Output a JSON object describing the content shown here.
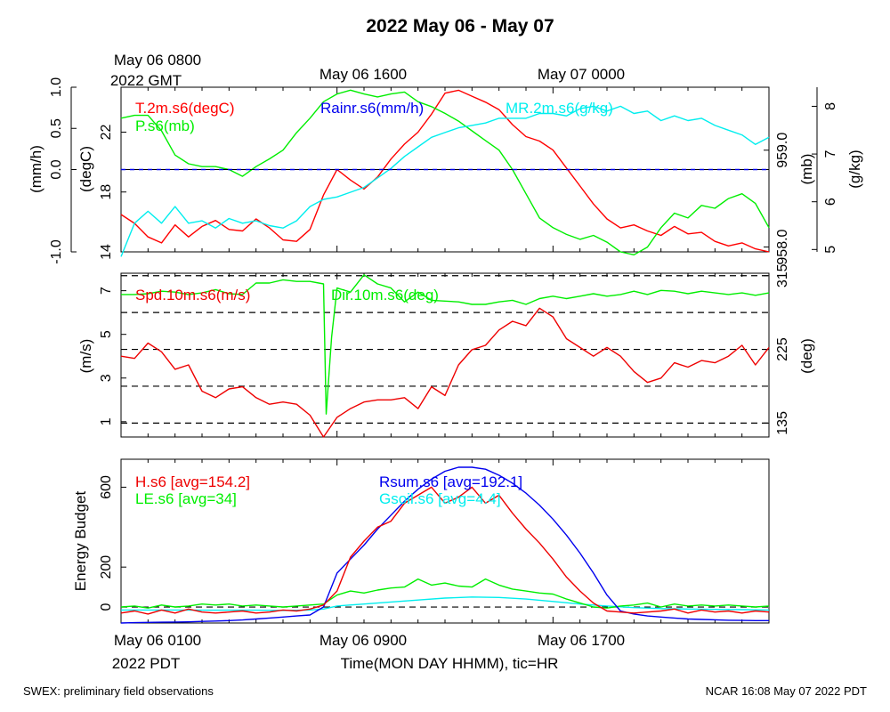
{
  "page": {
    "title": "2022 May 06 - May 07",
    "footer_left": "SWEX: preliminary field observations",
    "footer_right": "NCAR 16:08 May 07 2022 PDT",
    "top_time_labels": [
      {
        "text": "May 06 0800",
        "hour": 0
      },
      {
        "text": "May 06 1600",
        "hour": 8
      },
      {
        "text": "May 07 0000",
        "hour": 16
      }
    ],
    "top_time_zone": "2022 GMT",
    "bottom_time_labels": [
      {
        "text": "May 06 0100",
        "hour": 0
      },
      {
        "text": "May 06 0900",
        "hour": 8
      },
      {
        "text": "May 06 1700",
        "hour": 16
      }
    ],
    "bottom_time_zone": "2022 PDT",
    "xlabel": "Time(MON DAY HHMM), tic=HR"
  },
  "chart_data": [
    {
      "type": "line",
      "panel": "state",
      "x_range_hours": [
        0,
        24
      ],
      "series": [
        {
          "name": "T.2m.s6(degC)",
          "color": "#ff0000",
          "axis": "degC",
          "x": [
            0,
            0.5,
            1,
            1.5,
            2,
            2.5,
            3,
            3.5,
            4,
            4.5,
            5,
            5.5,
            6,
            6.5,
            7,
            7.5,
            8,
            8.5,
            9,
            9.5,
            10,
            10.5,
            11,
            11.5,
            12,
            12.5,
            13,
            13.5,
            14,
            14.5,
            15,
            15.5,
            16,
            16.5,
            17,
            17.5,
            18,
            18.5,
            19,
            19.5,
            20,
            20.5,
            21,
            21.5,
            22,
            22.5,
            23,
            23.5,
            24
          ],
          "values": [
            16.5,
            15.9,
            15.0,
            14.6,
            15.8,
            15.0,
            15.7,
            16.1,
            15.5,
            15.4,
            16.2,
            15.6,
            14.8,
            14.7,
            15.5,
            17.8,
            19.5,
            18.8,
            18.2,
            19.0,
            20.2,
            21.2,
            22.0,
            23.2,
            24.6,
            24.8,
            24.4,
            24.0,
            23.5,
            22.5,
            21.7,
            21.4,
            20.8,
            19.6,
            18.4,
            17.2,
            16.2,
            15.6,
            15.8,
            15.4,
            15.1,
            15.7,
            15.2,
            15.3,
            14.7,
            14.4,
            14.6,
            14.2,
            14.0
          ]
        },
        {
          "name": "P.s6(mb)",
          "color": "#00ee00",
          "axis": "mb",
          "x": [
            0,
            0.5,
            1,
            1.5,
            2,
            2.5,
            3,
            3.5,
            4,
            4.5,
            5,
            5.5,
            6,
            6.5,
            7,
            7.5,
            8,
            8.5,
            9,
            9.5,
            10,
            10.5,
            11,
            11.5,
            12,
            12.5,
            13,
            13.5,
            14,
            14.5,
            15,
            15.5,
            16,
            16.5,
            17,
            17.5,
            18,
            18.5,
            19,
            19.5,
            20,
            20.5,
            21,
            21.5,
            22,
            22.5,
            23,
            23.5,
            24
          ],
          "values": [
            959.33,
            959.36,
            959.36,
            959.2,
            958.95,
            958.86,
            958.83,
            958.83,
            958.8,
            958.73,
            958.83,
            958.91,
            959.0,
            959.18,
            959.33,
            959.5,
            959.58,
            959.62,
            959.58,
            959.55,
            959.58,
            959.6,
            959.5,
            959.45,
            959.38,
            959.3,
            959.2,
            959.1,
            959.0,
            958.8,
            958.55,
            958.3,
            958.2,
            958.13,
            958.08,
            958.12,
            958.05,
            957.95,
            957.92,
            958.0,
            958.2,
            958.35,
            958.3,
            958.43,
            958.4,
            958.5,
            958.55,
            958.45,
            958.2
          ]
        },
        {
          "name": "MR.2m.s6(g/kg)",
          "color": "#00eeee",
          "axis": "g/kg",
          "x": [
            0,
            0.5,
            1,
            1.5,
            2,
            2.5,
            3,
            3.5,
            4,
            4.5,
            5,
            5.5,
            6,
            6.5,
            7,
            7.5,
            8,
            8.5,
            9,
            9.5,
            10,
            10.5,
            11,
            11.5,
            12,
            12.5,
            13,
            13.5,
            14,
            14.5,
            15,
            15.5,
            16,
            16.5,
            17,
            17.5,
            18,
            18.5,
            19,
            19.5,
            20,
            20.5,
            21,
            21.5,
            22,
            22.5,
            23,
            23.5,
            24
          ],
          "values": [
            4.85,
            5.55,
            5.8,
            5.55,
            5.9,
            5.55,
            5.6,
            5.45,
            5.65,
            5.55,
            5.6,
            5.5,
            5.45,
            5.6,
            5.9,
            6.05,
            6.1,
            6.2,
            6.3,
            6.5,
            6.7,
            6.95,
            7.15,
            7.35,
            7.45,
            7.55,
            7.6,
            7.65,
            7.75,
            7.75,
            7.75,
            7.85,
            7.85,
            7.8,
            7.95,
            8.0,
            7.9,
            8.0,
            7.85,
            7.9,
            7.7,
            7.8,
            7.7,
            7.75,
            7.6,
            7.5,
            7.4,
            7.2,
            7.35
          ]
        },
        {
          "name": "Rainr.s6(mm/h)",
          "color": "#0000ee",
          "axis": "mm/h",
          "x": [
            0,
            24
          ],
          "values": [
            0,
            0
          ]
        }
      ],
      "axes": {
        "degC": {
          "label": "(degC)",
          "range": [
            14,
            25
          ],
          "ticks": [
            14,
            18,
            22
          ]
        },
        "mm/h": {
          "label": "(mm/h)",
          "range": [
            -1.0,
            1.0
          ],
          "ticks": [
            -1.0,
            0.0,
            0.5,
            1.0
          ],
          "tick_labels": [
            "-1.0",
            "0.0",
            "0.5",
            "1.0"
          ]
        },
        "mb": {
          "label": "(mb)",
          "range": [
            957.95,
            959.65
          ],
          "ticks": [
            958.0,
            959.0
          ],
          "tick_labels": [
            "958.0",
            "959.0"
          ]
        },
        "g/kg": {
          "label": "(g/kg)",
          "range": [
            4.95,
            8.4
          ],
          "ticks": [
            5,
            6,
            7,
            8
          ]
        }
      }
    },
    {
      "type": "line",
      "panel": "wind",
      "x_range_hours": [
        0,
        24
      ],
      "series": [
        {
          "name": "Spd.10m.s6(m/s)",
          "color": "#ee0000",
          "axis": "m/s",
          "x": [
            0,
            0.5,
            1,
            1.5,
            2,
            2.5,
            3,
            3.5,
            4,
            4.5,
            5,
            5.5,
            6,
            6.5,
            7,
            7.5,
            8,
            8.5,
            9,
            9.5,
            10,
            10.5,
            11,
            11.5,
            12,
            12.5,
            13,
            13.5,
            14,
            14.5,
            15,
            15.5,
            16,
            16.5,
            17,
            17.5,
            18,
            18.5,
            19,
            19.5,
            20,
            20.5,
            21,
            21.5,
            22,
            22.5,
            23,
            23.5,
            24
          ],
          "values": [
            4.0,
            3.9,
            4.6,
            4.2,
            3.4,
            3.6,
            2.4,
            2.1,
            2.5,
            2.6,
            2.1,
            1.8,
            1.9,
            1.8,
            1.3,
            0.3,
            1.2,
            1.6,
            1.9,
            2.0,
            2.0,
            2.1,
            1.6,
            2.6,
            2.2,
            3.6,
            4.3,
            4.5,
            5.2,
            5.6,
            5.4,
            6.2,
            5.8,
            4.8,
            4.4,
            4.0,
            4.4,
            4.0,
            3.3,
            2.8,
            3.0,
            3.7,
            3.5,
            3.8,
            3.7,
            4.0,
            4.5,
            3.6,
            4.4
          ]
        },
        {
          "name": "Dir.10m.s6(deg)",
          "color": "#00ee00",
          "axis": "deg",
          "x": [
            0,
            0.5,
            1,
            1.5,
            2,
            2.5,
            3,
            3.5,
            4,
            4.5,
            5,
            5.5,
            6,
            6.5,
            7,
            7.5,
            7.6,
            7.8,
            8,
            8.5,
            9,
            9.5,
            10,
            10.5,
            11,
            11.5,
            12,
            12.5,
            13,
            13.5,
            14,
            14.5,
            15,
            15.5,
            16,
            16.5,
            17,
            17.5,
            18,
            18.5,
            19,
            19.5,
            20,
            20.5,
            21,
            21.5,
            22,
            22.5,
            23,
            23.5,
            24
          ],
          "values": [
            292,
            292,
            293,
            296,
            295,
            292,
            294,
            298,
            293,
            292,
            306,
            306,
            310,
            308,
            308,
            305,
            146,
            240,
            300,
            295,
            316,
            305,
            300,
            283,
            295,
            285,
            284,
            283,
            280,
            280,
            283,
            285,
            280,
            287,
            290,
            287,
            290,
            293,
            290,
            292,
            296,
            292,
            297,
            296,
            293,
            296,
            294,
            292,
            294,
            291,
            294
          ]
        }
      ],
      "axes": {
        "m/s": {
          "label": "(m/s)",
          "range": [
            0.3,
            7.8
          ],
          "ticks": [
            1,
            3,
            5,
            7
          ]
        },
        "deg": {
          "label": "(deg)",
          "range": [
            118,
            318
          ],
          "ticks": [
            135,
            225,
            315
          ]
        }
      },
      "reference_lines_deg": [
        135,
        180,
        225,
        270,
        315
      ]
    },
    {
      "type": "line",
      "panel": "energy",
      "x_range_hours": [
        0,
        24
      ],
      "ylabel": "Energy Budget",
      "y_range": [
        -80,
        740
      ],
      "y_ticks": [
        0,
        200,
        600
      ],
      "series": [
        {
          "name": "H.s6 [avg=154.2]",
          "color": "#ee0000",
          "x": [
            0,
            0.5,
            1,
            1.5,
            2,
            2.5,
            3,
            3.5,
            4,
            4.5,
            5,
            5.5,
            6,
            6.5,
            7,
            7.5,
            8,
            8.5,
            9,
            9.5,
            10,
            10.5,
            11,
            11.5,
            12,
            12.5,
            13,
            13.5,
            14,
            14.5,
            15,
            15.5,
            16,
            16.5,
            17,
            17.5,
            18,
            18.5,
            19,
            19.5,
            20,
            20.5,
            21,
            21.5,
            22,
            22.5,
            23,
            23.5,
            24
          ],
          "values": [
            -30,
            -20,
            -35,
            -15,
            -30,
            -10,
            -25,
            -30,
            -25,
            -20,
            -30,
            -25,
            -15,
            -20,
            -10,
            10,
            80,
            250,
            330,
            400,
            430,
            520,
            560,
            600,
            520,
            550,
            600,
            520,
            560,
            470,
            390,
            320,
            240,
            150,
            80,
            20,
            -20,
            -25,
            -30,
            -25,
            -20,
            -10,
            -30,
            -15,
            -25,
            -20,
            -30,
            -20,
            -25
          ]
        },
        {
          "name": "LE.s6 [avg=34]",
          "color": "#00ee00",
          "x": [
            0,
            0.5,
            1,
            1.5,
            2,
            2.5,
            3,
            3.5,
            4,
            4.5,
            5,
            5.5,
            6,
            6.5,
            7,
            7.5,
            8,
            8.5,
            9,
            9.5,
            10,
            10.5,
            11,
            11.5,
            12,
            12.5,
            13,
            13.5,
            14,
            14.5,
            15,
            15.5,
            16,
            16.5,
            17,
            17.5,
            18,
            18.5,
            19,
            19.5,
            20,
            20.5,
            21,
            21.5,
            22,
            22.5,
            23,
            23.5,
            24
          ],
          "values": [
            0,
            5,
            -5,
            10,
            0,
            5,
            15,
            10,
            15,
            5,
            10,
            5,
            0,
            5,
            10,
            15,
            60,
            80,
            70,
            85,
            95,
            100,
            140,
            110,
            120,
            105,
            100,
            140,
            110,
            90,
            80,
            70,
            65,
            40,
            20,
            0,
            -5,
            5,
            10,
            20,
            0,
            15,
            5,
            10,
            5,
            10,
            5,
            0,
            5
          ]
        },
        {
          "name": "Rsum.s6 [avg=192.1]",
          "color": "#0000ee",
          "x": [
            0,
            0.5,
            1,
            1.5,
            2,
            2.5,
            3,
            3.5,
            4,
            4.5,
            5,
            5.5,
            6,
            6.5,
            7,
            7.5,
            8,
            8.5,
            9,
            9.5,
            10,
            10.5,
            11,
            11.5,
            12,
            12.5,
            13,
            13.5,
            14,
            14.5,
            15,
            15.5,
            16,
            16.5,
            17,
            17.5,
            18,
            18.5,
            19,
            19.5,
            20,
            20.5,
            21,
            21.5,
            22,
            22.5,
            23,
            23.5,
            24
          ],
          "values": [
            -80,
            -78,
            -77,
            -76,
            -75,
            -74,
            -72,
            -70,
            -68,
            -65,
            -60,
            -55,
            -50,
            -45,
            -40,
            0,
            170,
            240,
            310,
            390,
            460,
            530,
            590,
            640,
            680,
            700,
            700,
            690,
            660,
            620,
            570,
            510,
            440,
            360,
            270,
            170,
            60,
            -20,
            -35,
            -45,
            -50,
            -55,
            -60,
            -62,
            -64,
            -66,
            -67,
            -68,
            -68
          ]
        },
        {
          "name": "Gsoil.s6 [avg=4.4]",
          "color": "#00eeee",
          "x": [
            0,
            1,
            2,
            3,
            4,
            5,
            6,
            7,
            7.5,
            8,
            9,
            10,
            11,
            12,
            13,
            14,
            15,
            16,
            17,
            18,
            19,
            20,
            21,
            22,
            23,
            24
          ],
          "values": [
            -15,
            -15,
            -15,
            -16,
            -16,
            -16,
            -17,
            -15,
            -10,
            5,
            15,
            25,
            35,
            45,
            50,
            48,
            40,
            28,
            15,
            5,
            -3,
            -8,
            -10,
            -12,
            -13,
            -15
          ]
        }
      ],
      "reference_lines": [
        0
      ]
    }
  ]
}
